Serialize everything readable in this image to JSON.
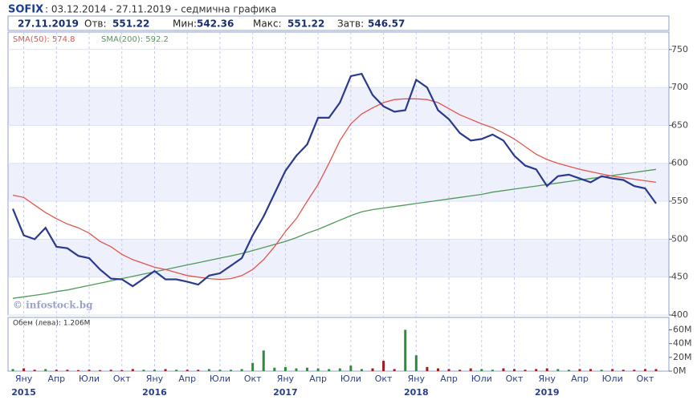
{
  "header": {
    "symbol": "SOFIX",
    "subtitle": ": 03.12.2014 - 27.11.2019 - седмична графика",
    "date": "27.11.2019",
    "fields": [
      {
        "label": "Отв:",
        "value": 551.22
      },
      {
        "label": "Мин:",
        "value": 542.36
      },
      {
        "label": "Макс:",
        "value": 551.22
      },
      {
        "label": "Затв:",
        "value": 546.57
      }
    ]
  },
  "chart_data": {
    "type": "line",
    "watermark": "© infostock.bg",
    "categories": [
      null,
      "Яну",
      null,
      null,
      "Апр",
      null,
      null,
      "Юли",
      null,
      null,
      "Окт",
      null,
      null,
      "Яну",
      null,
      null,
      "Апр",
      null,
      null,
      "Юли",
      null,
      null,
      "Окт",
      null,
      null,
      "Яну",
      null,
      null,
      "Апр",
      null,
      null,
      "Юли",
      null,
      null,
      "Окт",
      null,
      null,
      "Яну",
      null,
      null,
      "Апр",
      null,
      null,
      "Юли",
      null,
      null,
      "Окт",
      null,
      null,
      "Яну",
      null,
      null,
      "Апр",
      null,
      null,
      "Юли",
      null,
      null,
      "Окт",
      null
    ],
    "year_labels": [
      "2015",
      "2016",
      "2017",
      "2018",
      "2019"
    ],
    "ylim": [
      400,
      773
    ],
    "yticks": [
      400,
      450,
      500,
      550,
      600,
      650,
      700,
      750
    ],
    "grid": true,
    "series": [
      {
        "name": null,
        "color": "#2a3a8c",
        "values": [
          540,
          505,
          500,
          515,
          490,
          488,
          478,
          475,
          460,
          448,
          447,
          438,
          448,
          458,
          447,
          447,
          444,
          440,
          452,
          455,
          465,
          475,
          505,
          530,
          560,
          590,
          610,
          625,
          660,
          660,
          680,
          715,
          718,
          690,
          675,
          668,
          670,
          710,
          700,
          670,
          658,
          640,
          630,
          632,
          638,
          630,
          610,
          597,
          592,
          570,
          583,
          585,
          580,
          575,
          583,
          580,
          578,
          570,
          567,
          547
        ]
      },
      {
        "name": "SMA(50): 574.8",
        "color": "#e0574f",
        "values": [
          558,
          555,
          545,
          535,
          527,
          520,
          515,
          508,
          497,
          490,
          480,
          473,
          468,
          463,
          460,
          456,
          452,
          450,
          448,
          447,
          448,
          452,
          460,
          473,
          490,
          510,
          527,
          550,
          572,
          600,
          630,
          652,
          665,
          673,
          680,
          684,
          685,
          685,
          684,
          680,
          672,
          664,
          658,
          652,
          647,
          640,
          632,
          622,
          612,
          605,
          600,
          596,
          592,
          589,
          586,
          583,
          581,
          579,
          577,
          575
        ]
      },
      {
        "name": "SMA(200): 592.2",
        "color": "#4f9a5a",
        "values": [
          422,
          424,
          426,
          428,
          431,
          433,
          436,
          439,
          442,
          445,
          448,
          451,
          454,
          457,
          460,
          463,
          466,
          469,
          472,
          475,
          478,
          481,
          485,
          489,
          493,
          497,
          502,
          508,
          513,
          519,
          525,
          531,
          536,
          539,
          541,
          543,
          545,
          547,
          549,
          551,
          553,
          555,
          557,
          559,
          562,
          564,
          566,
          568,
          570,
          572,
          574,
          576,
          578,
          580,
          582,
          584,
          586,
          588,
          590,
          592
        ]
      }
    ],
    "volume": {
      "label": "Обем (лева): 1.206M",
      "up_color": "#2e8b3e",
      "down_color": "#9b1c1c",
      "ylim": [
        0,
        78
      ],
      "yticks": [
        {
          "value": 0,
          "label": "0M"
        },
        {
          "value": 20,
          "label": "20M"
        },
        {
          "value": 40,
          "label": "40M"
        },
        {
          "value": 60,
          "label": "60M"
        }
      ],
      "values": [
        3,
        4,
        2,
        3,
        2,
        2,
        1.5,
        2,
        1.5,
        2,
        1.5,
        3,
        2,
        2,
        3,
        2,
        2,
        2,
        3,
        2,
        2,
        3,
        12,
        30,
        5,
        6,
        4,
        5,
        4,
        3,
        4,
        8,
        3,
        4,
        15,
        3,
        60,
        23,
        6,
        4,
        3,
        2,
        4,
        3,
        2,
        4,
        3,
        2,
        3,
        4,
        3,
        2,
        3,
        3,
        2,
        3,
        2,
        2,
        3,
        3
      ]
    }
  }
}
